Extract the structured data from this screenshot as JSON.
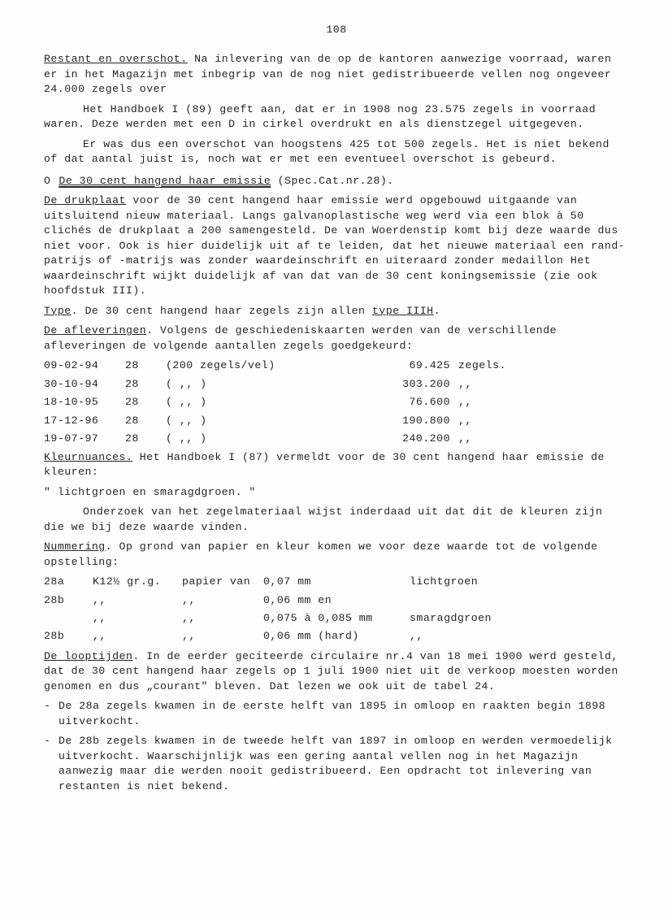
{
  "page_number": "108",
  "para1": "Restant en overschot. Na inlevering van de op de kantoren aanwezige voorraad, waren er in het Magazijn met inbegrip van de nog niet gedistribueerde vellen nog ongeveer 24.000 zegels over",
  "para1_prefix": "Restant en overschot.",
  "para1_rest": " Na inlevering van de op de kantoren aanwezige voorraad, waren er in het Magazijn met inbegrip van de nog niet gedistribueerde vellen nog ongeveer 24.000 zegels over",
  "para2": "Het Handboek I (89) geeft aan, dat er in 1908 nog 23.575 zegels in voorraad waren. Deze werden met een D in cirkel overdrukt en als dienstzegel uitgegeven.",
  "para3": "Er was dus een overschot van hoogstens 425 tot 500 zegels. Het is niet bekend of dat aantal juist is, noch wat er met een eventueel overschot is gebeurd.",
  "heading1_marker": "O",
  "heading1": "De 30 cent hangend haar emissie",
  "heading1_suffix": " (Spec.Cat.nr.28).",
  "drukplaat_prefix": "De drukplaat",
  "drukplaat_rest": " voor de 30 cent hangend haar emissie werd opgebouwd uitgaande van uitsluitend nieuw materiaal. Langs galvanoplastische weg werd  via een blok à 50 clichés de drukplaat a 200 samengesteld. De van Woerdenstip komt bij deze waarde dus niet voor. Ook is hier duidelijk uit af te leiden, dat het nieuwe materiaal een rand-patrijs of -matrijs was zonder waardeinschrift en uiteraard zonder medaillon Het waardeinschrift wijkt duidelijk af van dat van de 30 cent koningsemissie (zie ook hoofdstuk III).",
  "type_prefix": "Type",
  "type_text1": ". De 30 cent hangend haar zegels zijn allen ",
  "type_text2": "type IIIH",
  "type_text3": ".",
  "aflevering_prefix": "De afleveringen",
  "aflevering_rest": ". Volgens de geschiedeniskaarten werden van de verschillende afleveringen de volgende aantallen zegels goedgekeurd:",
  "deliveries": [
    {
      "date": "09-02-94",
      "num": "28",
      "desc": "(200 zegels/vel)",
      "value": "69.425",
      "unit": "zegels."
    },
    {
      "date": "30-10-94",
      "num": "28",
      "desc": "(      ,,       )",
      "value": "303.200",
      "unit": "  ,,"
    },
    {
      "date": "18-10-95",
      "num": "28",
      "desc": "(      ,,       )",
      "value": "76.600",
      "unit": "  ,,"
    },
    {
      "date": "17-12-96",
      "num": "28",
      "desc": "(      ,,       )",
      "value": "190.800",
      "unit": "  ,,"
    },
    {
      "date": "19-07-97",
      "num": "28",
      "desc": "(      ,,       )",
      "value": "240.200",
      "unit": "  ,,"
    }
  ],
  "kleur_prefix": "Kleurnuances.",
  "kleur_rest": " Het Handboek I (87) vermeldt voor de 30 cent hangend haar emissie de kleuren:",
  "kleur_quote": "\"   lichtgroen en smaragdgroen. \"",
  "onderzoek": "Onderzoek van het zegelmateriaal wijst inderdaad uit dat dit de kleuren zijn die we bij deze waarde vinden.",
  "nummering_prefix": "Nummering",
  "nummering_rest": ". Op grond van papier en kleur komen we voor deze waarde tot de volgende opstelling:",
  "numbering": [
    {
      "c1": "28a",
      "c2": "K12½ gr.g.",
      "c3": "papier van",
      "c4": "0,07 mm",
      "c5": "lichtgroen"
    },
    {
      "c1": "28b",
      "c2": "  ,,",
      "c3": "  ,,",
      "c4": "0,06 mm en",
      "c5": ""
    },
    {
      "c1": "",
      "c2": "  ,,",
      "c3": "  ,,",
      "c4": "0,075 à 0,085 mm",
      "c5": "smaragdgroen"
    },
    {
      "c1": "28b",
      "c2": "  ,,",
      "c3": "  ,,",
      "c4": "0,06 mm (hard)",
      "c5": "    ,,"
    }
  ],
  "looptijden_prefix": "De looptijden",
  "looptijden_rest": ". In de eerder geciteerde circulaire nr.4 van 18 mei 1900 werd gesteld, dat de 30 cent hangend haar zegels op 1 juli 1900 niet uit de verkoop moesten worden genomen en dus „courant\" bleven. Dat lezen we ook uit de tabel 24.",
  "list": [
    "De 28a zegels kwamen in de eerste helft van 1895 in omloop en raakten begin 1898 uitverkocht.",
    "De 28b zegels kwamen in de tweede helft van 1897 in omloop en werden vermoedelijk uitverkocht. Waarschijnlijk was een gering aantal vellen nog in het Magazijn aanwezig maar die werden nooit gedistribueerd. Een opdracht tot inlevering van restanten is niet bekend."
  ],
  "list_marker": "-"
}
